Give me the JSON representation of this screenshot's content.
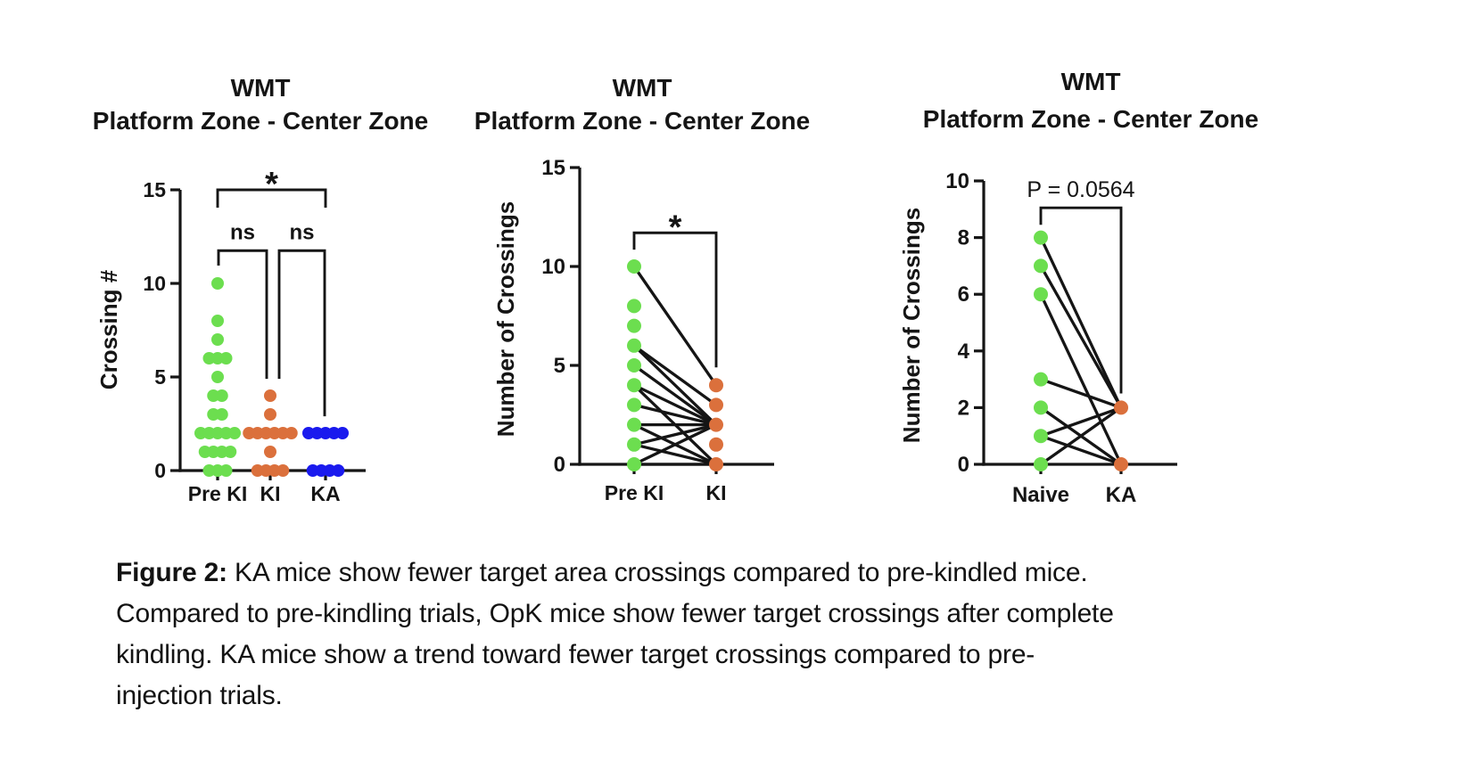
{
  "page": {
    "background": "#ffffff"
  },
  "colors": {
    "green": "#6CDE4F",
    "orange": "#DB703C",
    "blue": "#1A1AEE",
    "axis": "#151515"
  },
  "caption": {
    "label": "Figure 2:",
    "lines": [
      " KA mice show fewer target area crossings compared to pre-kindled mice.",
      "Compared to pre-kindling trials, OpK mice show fewer target crossings after complete",
      "kindling. KA mice show a trend toward fewer target crossings compared to pre-",
      "injection trials."
    ]
  },
  "chart_data": [
    {
      "type": "scatter",
      "title_lines": [
        "WMT",
        "Platform Zone - Center Zone"
      ],
      "ylabel": "Crossing #",
      "xlabel": "",
      "ylim": [
        0,
        15
      ],
      "yticks": [
        0,
        5,
        10,
        15
      ],
      "grid": false,
      "categories": [
        "Pre KI",
        "KI",
        "KA"
      ],
      "series": [
        {
          "name": "Pre KI",
          "color": "#6CDE4F",
          "stacks": [
            [
              10,
              1
            ],
            [
              8,
              1
            ],
            [
              7,
              1
            ],
            [
              6,
              3
            ],
            [
              5,
              1
            ],
            [
              4,
              2
            ],
            [
              3,
              2
            ],
            [
              2,
              5
            ],
            [
              1,
              4
            ],
            [
              0,
              3
            ]
          ]
        },
        {
          "name": "KI",
          "color": "#DB703C",
          "stacks": [
            [
              4,
              1
            ],
            [
              3,
              1
            ],
            [
              2,
              6
            ],
            [
              1,
              1
            ],
            [
              0,
              4
            ]
          ]
        },
        {
          "name": "KA",
          "color": "#1A1AEE",
          "stacks": [
            [
              2,
              5
            ],
            [
              0,
              4
            ]
          ]
        }
      ],
      "pairs": [],
      "brackets": [
        {
          "from": 0,
          "to": 2,
          "y": 15.0,
          "drop_from": 0.95,
          "drop_to": 0.95,
          "label": "*"
        },
        {
          "from": 0,
          "to": 1,
          "y": 11.75,
          "drop_from": 0.8,
          "drop_to": 6.85,
          "label": "ns"
        },
        {
          "from": 1,
          "to": 2,
          "y": 11.75,
          "drop_from": 6.85,
          "drop_to": 8.85,
          "label": "ns"
        }
      ]
    },
    {
      "type": "scatter",
      "title_lines": [
        "WMT",
        "Platform Zone - Center Zone"
      ],
      "ylabel": "Number of Crossings",
      "xlabel": "",
      "ylim": [
        0,
        15
      ],
      "yticks": [
        0,
        5,
        10,
        15
      ],
      "grid": false,
      "categories": [
        "Pre KI",
        "KI"
      ],
      "series": [
        {
          "name": "Pre KI",
          "color": "#6CDE4F",
          "stacks": [
            [
              10,
              1
            ],
            [
              8,
              1
            ],
            [
              7,
              1
            ],
            [
              6,
              1
            ],
            [
              5,
              1
            ],
            [
              4,
              1
            ],
            [
              3,
              1
            ],
            [
              2,
              1
            ],
            [
              1,
              1
            ],
            [
              0,
              1
            ]
          ]
        },
        {
          "name": "KI",
          "color": "#DB703C",
          "stacks": [
            [
              4,
              1
            ],
            [
              3,
              1
            ],
            [
              2,
              1
            ],
            [
              1,
              1
            ],
            [
              0,
              1
            ]
          ]
        }
      ],
      "pairs": [
        [
          10,
          4
        ],
        [
          6,
          3
        ],
        [
          6,
          2
        ],
        [
          5,
          2
        ],
        [
          4,
          2
        ],
        [
          4,
          0
        ],
        [
          3,
          2
        ],
        [
          2,
          2
        ],
        [
          2,
          0
        ],
        [
          1,
          2
        ],
        [
          1,
          0
        ],
        [
          0,
          2
        ],
        [
          0,
          0
        ]
      ],
      "brackets": [
        {
          "from": 0,
          "to": 1,
          "y": 11.7,
          "drop_from": 0.85,
          "drop_to": 6.8,
          "label": "*"
        }
      ]
    },
    {
      "type": "scatter",
      "title_lines": [
        "WMT",
        "Platform Zone - Center Zone"
      ],
      "ylabel": "Number of Crossings",
      "xlabel": "",
      "ylim": [
        0,
        10
      ],
      "yticks": [
        0,
        2,
        4,
        6,
        8,
        10
      ],
      "grid": false,
      "categories": [
        "Naive",
        "KA"
      ],
      "series": [
        {
          "name": "Naive",
          "color": "#6CDE4F",
          "stacks": [
            [
              8,
              1
            ],
            [
              7,
              1
            ],
            [
              6,
              1
            ],
            [
              3,
              1
            ],
            [
              2,
              1
            ],
            [
              1,
              1
            ],
            [
              0,
              1
            ]
          ]
        },
        {
          "name": "KA",
          "color": "#DB703C",
          "stacks": [
            [
              2,
              1
            ],
            [
              0,
              1
            ]
          ]
        }
      ],
      "pairs": [
        [
          8,
          2
        ],
        [
          7,
          2
        ],
        [
          6,
          0
        ],
        [
          3,
          2
        ],
        [
          2,
          0
        ],
        [
          1,
          2
        ],
        [
          1,
          0
        ],
        [
          0,
          2
        ]
      ],
      "brackets": [
        {
          "from": 0,
          "to": 1,
          "y": 9.05,
          "drop_from": 0.6,
          "drop_to": 6.55,
          "label": "P = 0.0564"
        }
      ]
    }
  ]
}
